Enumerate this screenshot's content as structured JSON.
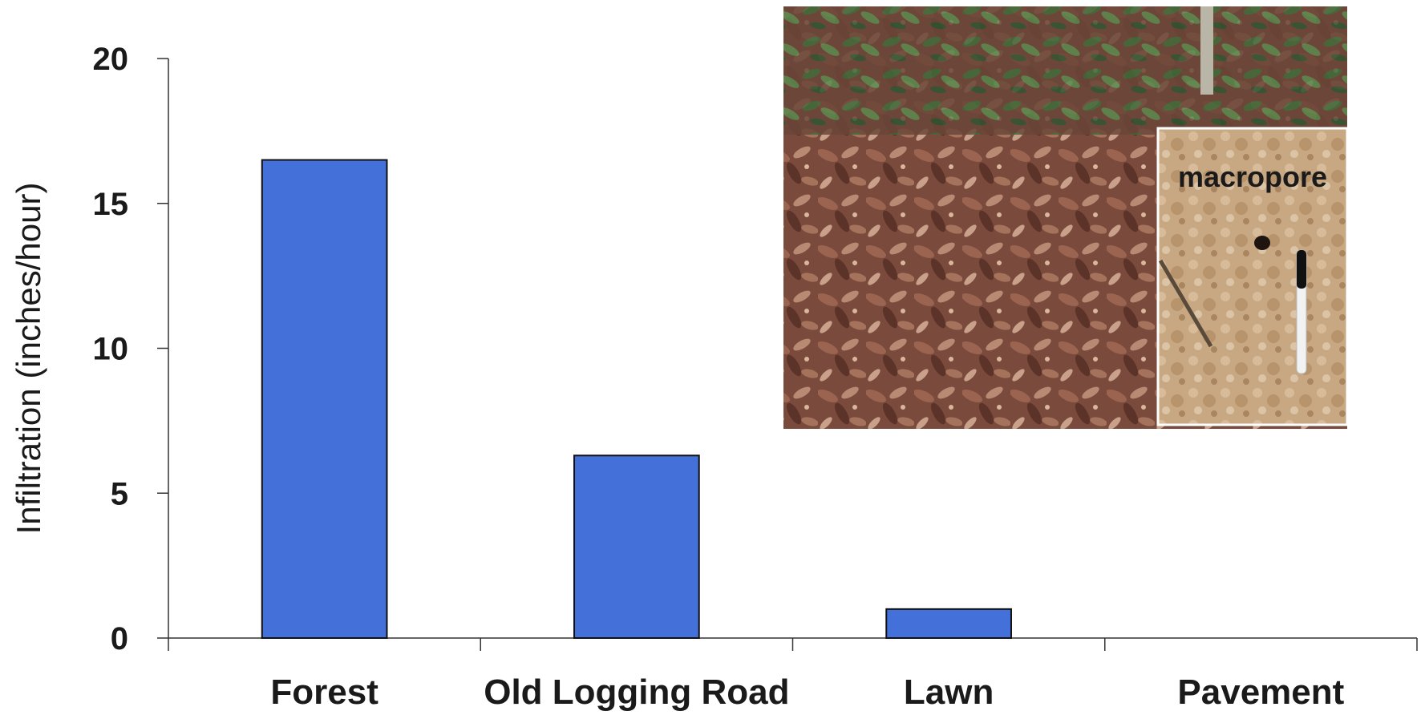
{
  "chart_data": {
    "type": "bar",
    "title": "",
    "xlabel": "",
    "ylabel": "Infiltration (inches/hour)",
    "categories": [
      "Forest",
      "Old Logging Road",
      "Lawn",
      "Pavement"
    ],
    "values": [
      16.5,
      6.3,
      1.0,
      0
    ],
    "ylim": [
      0,
      20
    ],
    "yticks": [
      0,
      5,
      10,
      15,
      20
    ],
    "grid": false,
    "bar_color": "#4370d9",
    "bar_edge_color": "#111111"
  },
  "photo": {
    "description_icon": "forest-floor-photo",
    "inset_label": "macropore",
    "inset_icon": "soil-macropore-photo"
  }
}
